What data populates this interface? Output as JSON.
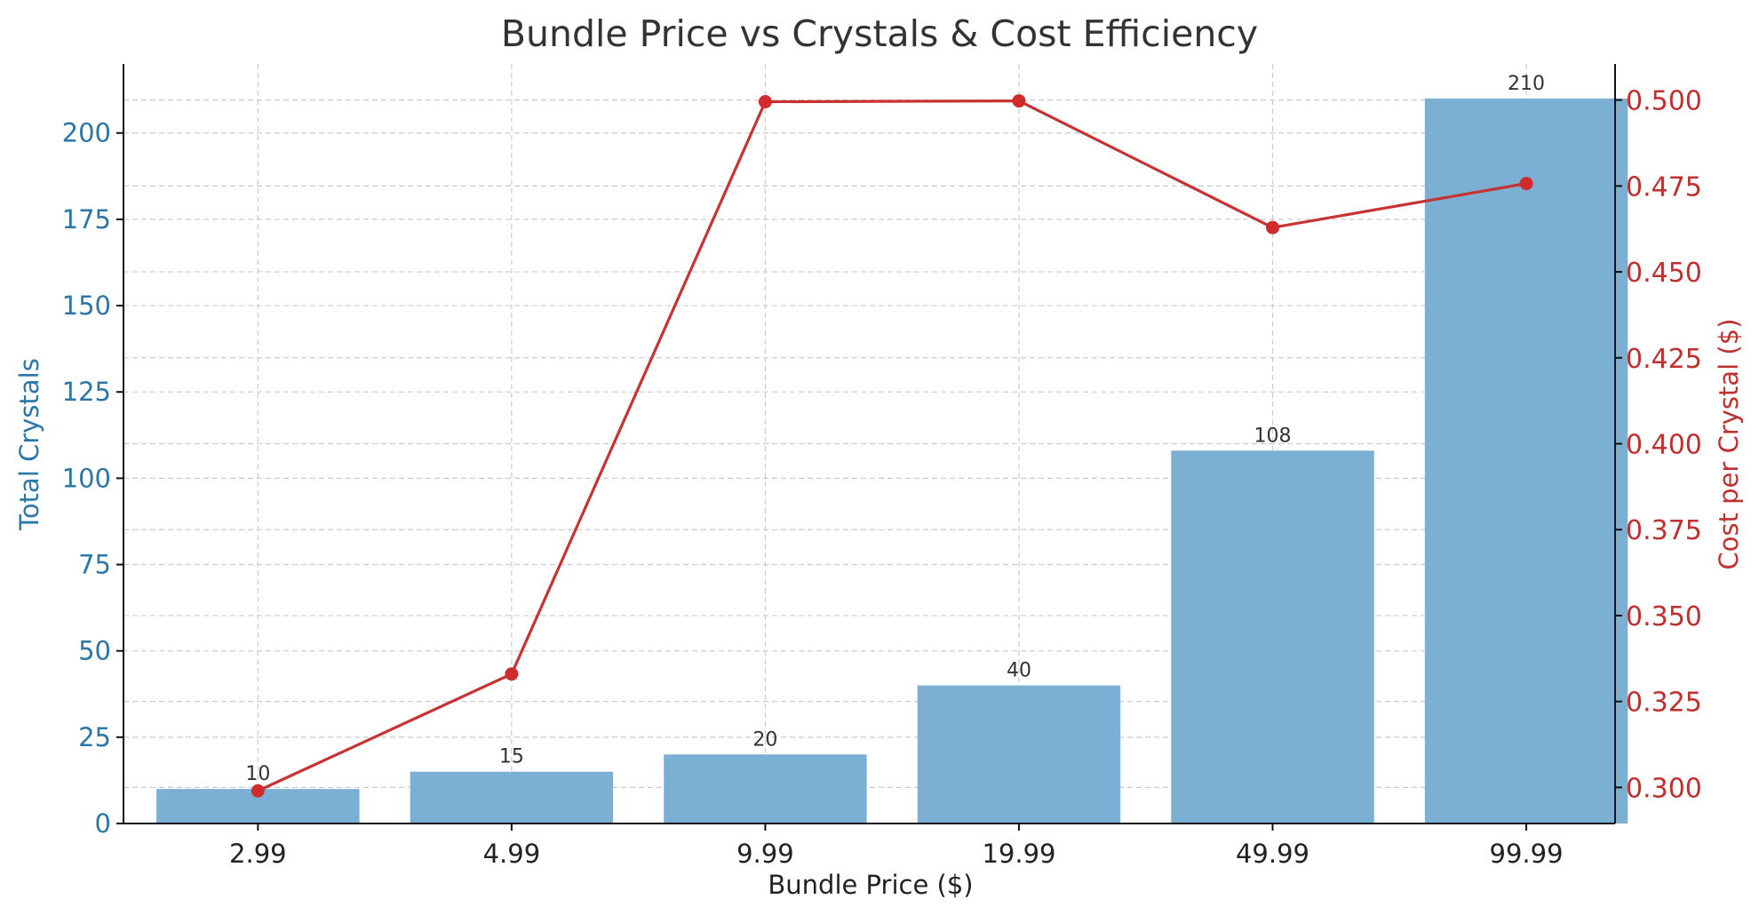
{
  "chart_data": {
    "type": "bar",
    "title": "Bundle Price vs Crystals & Cost Efficiency",
    "xlabel": "Bundle Price ($)",
    "categories": [
      "2.99",
      "4.99",
      "9.99",
      "19.99",
      "49.99",
      "99.99"
    ],
    "series": [
      {
        "name": "Total Crystals",
        "type": "bar",
        "axis": "left",
        "values": [
          10,
          15,
          20,
          40,
          108,
          210
        ],
        "data_labels": [
          "10",
          "15",
          "20",
          "40",
          "108",
          "210"
        ],
        "color": "#7bafd4"
      },
      {
        "name": "Cost per Crystal ($)",
        "type": "line",
        "axis": "right",
        "values": [
          0.299,
          0.333,
          0.4995,
          0.49975,
          0.4629,
          0.4757
        ],
        "color": "#c83232"
      }
    ],
    "y_left": {
      "label": "Total Crystals",
      "range": [
        0,
        220
      ],
      "ticks": [
        0,
        25,
        50,
        75,
        100,
        125,
        150,
        175,
        200
      ],
      "tick_labels": [
        "0",
        "25",
        "50",
        "75",
        "100",
        "125",
        "150",
        "175",
        "200"
      ],
      "color": "#2a77a8"
    },
    "y_right": {
      "label": "Cost per Crystal ($)",
      "range": [
        0.2895,
        0.5105
      ],
      "ticks": [
        0.3,
        0.325,
        0.35,
        0.375,
        0.4,
        0.425,
        0.45,
        0.475,
        0.5
      ],
      "tick_labels": [
        "0.300",
        "0.325",
        "0.350",
        "0.375",
        "0.400",
        "0.425",
        "0.450",
        "0.475",
        "0.500"
      ],
      "color": "#c0302e"
    },
    "grid": true,
    "grid_style": "dashed"
  }
}
